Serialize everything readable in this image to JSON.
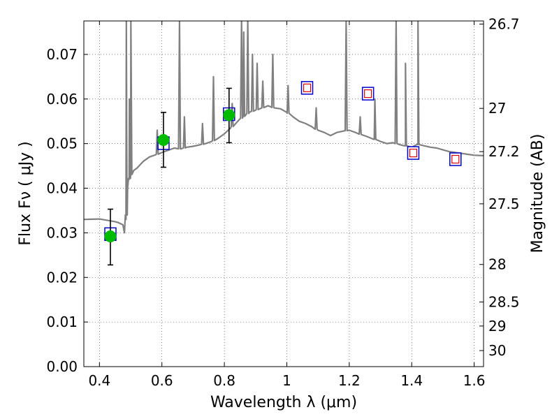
{
  "chart_data": {
    "type": "scatter",
    "xlabel": "Wavelength  λ (μm)",
    "ylabel": "Flux  Fν  ( μJy )",
    "y2label": "Magnitude (AB)",
    "xlim": [
      0.35,
      1.63
    ],
    "ylim": [
      0.0,
      0.0775
    ],
    "grid": true,
    "x_ticks": [
      0.4,
      0.6,
      0.8,
      1.0,
      1.2,
      1.4,
      1.6
    ],
    "x_tick_labels": [
      "0.4",
      "0.6",
      "0.8",
      "1",
      "1.2",
      "1.4",
      "1.6"
    ],
    "y_ticks": [
      0.0,
      0.01,
      0.02,
      0.03,
      0.04,
      0.05,
      0.06,
      0.07
    ],
    "y_tick_labels": [
      "0.00",
      "0.01",
      "0.02",
      "0.03",
      "0.04",
      "0.05",
      "0.06",
      "0.07"
    ],
    "mag_ticks": [
      {
        "label": "26.7",
        "flux": 0.0768
      },
      {
        "label": "27",
        "flux": 0.0579
      },
      {
        "label": "27.2",
        "flux": 0.0482
      },
      {
        "label": "27.5",
        "flux": 0.0365
      },
      {
        "label": "28",
        "flux": 0.0229
      },
      {
        "label": "28.5",
        "flux": 0.0145
      },
      {
        "label": "29",
        "flux": 0.0091
      },
      {
        "label": "30",
        "flux": 0.0036
      }
    ],
    "series": [
      {
        "kind": "observed",
        "marker": "circle",
        "color": "#00bb00",
        "x": [
          0.435,
          0.605,
          0.815
        ],
        "y": [
          0.0292,
          0.0508,
          0.0564
        ],
        "yerr_low": [
          0.0228,
          0.0447,
          0.0502
        ],
        "yerr_high": [
          0.0353,
          0.057,
          0.0624
        ]
      },
      {
        "kind": "model_filled",
        "marker": "square",
        "color": "#0000cc",
        "x": [
          0.435,
          0.605,
          0.815
        ],
        "y": [
          0.0297,
          0.0501,
          0.0566
        ]
      },
      {
        "kind": "model_predicted",
        "marker": "square",
        "color": "#0000cc",
        "inner_color": "#dd0000",
        "x": [
          1.065,
          1.26,
          1.405,
          1.54
        ],
        "y": [
          0.0625,
          0.0612,
          0.0479,
          0.0465
        ]
      }
    ],
    "spectrum": {
      "color": "#808080",
      "x": [
        0.35,
        0.4,
        0.45,
        0.46,
        0.475,
        0.48,
        0.485,
        0.488,
        0.49,
        0.495,
        0.5,
        0.51,
        0.52,
        0.54,
        0.56,
        0.58,
        0.6,
        0.62,
        0.64,
        0.66,
        0.68,
        0.7,
        0.72,
        0.74,
        0.76,
        0.78,
        0.8,
        0.82,
        0.84,
        0.86,
        0.88,
        0.9,
        0.92,
        0.94,
        0.96,
        0.98,
        1.0,
        1.02,
        1.04,
        1.06,
        1.08,
        1.1,
        1.12,
        1.14,
        1.16,
        1.18,
        1.2,
        1.22,
        1.24,
        1.26,
        1.28,
        1.3,
        1.32,
        1.34,
        1.36,
        1.38,
        1.4,
        1.42,
        1.44,
        1.46,
        1.48,
        1.5,
        1.52,
        1.54,
        1.56,
        1.58,
        1.6,
        1.63
      ],
      "y": [
        0.033,
        0.0331,
        0.0325,
        0.0323,
        0.0318,
        0.03,
        0.033,
        0.036,
        0.04,
        0.042,
        0.043,
        0.044,
        0.0445,
        0.046,
        0.047,
        0.0475,
        0.048,
        0.0485,
        0.049,
        0.0488,
        0.0492,
        0.0494,
        0.0497,
        0.05,
        0.0505,
        0.0512,
        0.0522,
        0.0535,
        0.0548,
        0.056,
        0.057,
        0.0575,
        0.058,
        0.0585,
        0.058,
        0.0578,
        0.057,
        0.056,
        0.055,
        0.0545,
        0.0538,
        0.053,
        0.0525,
        0.0518,
        0.0525,
        0.0528,
        0.053,
        0.0525,
        0.052,
        0.0515,
        0.051,
        0.0505,
        0.05,
        0.0502,
        0.0498,
        0.0495,
        0.0492,
        0.0498,
        0.0495,
        0.0492,
        0.049,
        0.0486,
        0.0482,
        0.048,
        0.0478,
        0.0476,
        0.0474,
        0.0473
      ],
      "emission_lines": [
        {
          "x": 0.486,
          "peak": 0.0775
        },
        {
          "x": 0.496,
          "peak": 0.06
        },
        {
          "x": 0.5007,
          "peak": 0.0775
        },
        {
          "x": 0.585,
          "peak": 0.053
        },
        {
          "x": 0.6563,
          "peak": 0.0775
        },
        {
          "x": 0.672,
          "peak": 0.056
        },
        {
          "x": 0.73,
          "peak": 0.0545
        },
        {
          "x": 0.765,
          "peak": 0.065
        },
        {
          "x": 0.825,
          "peak": 0.059
        },
        {
          "x": 0.855,
          "peak": 0.0775
        },
        {
          "x": 0.862,
          "peak": 0.075
        },
        {
          "x": 0.875,
          "peak": 0.0775
        },
        {
          "x": 0.89,
          "peak": 0.07
        },
        {
          "x": 0.905,
          "peak": 0.068
        },
        {
          "x": 0.923,
          "peak": 0.064
        },
        {
          "x": 0.955,
          "peak": 0.07
        },
        {
          "x": 1.004,
          "peak": 0.063
        },
        {
          "x": 1.094,
          "peak": 0.058
        },
        {
          "x": 1.19,
          "peak": 0.0775
        },
        {
          "x": 1.235,
          "peak": 0.056
        },
        {
          "x": 1.282,
          "peak": 0.06
        },
        {
          "x": 1.35,
          "peak": 0.0775
        },
        {
          "x": 1.38,
          "peak": 0.068
        },
        {
          "x": 1.42,
          "peak": 0.0775
        },
        {
          "x": 1.42,
          "peak": 0.0775
        }
      ]
    }
  }
}
